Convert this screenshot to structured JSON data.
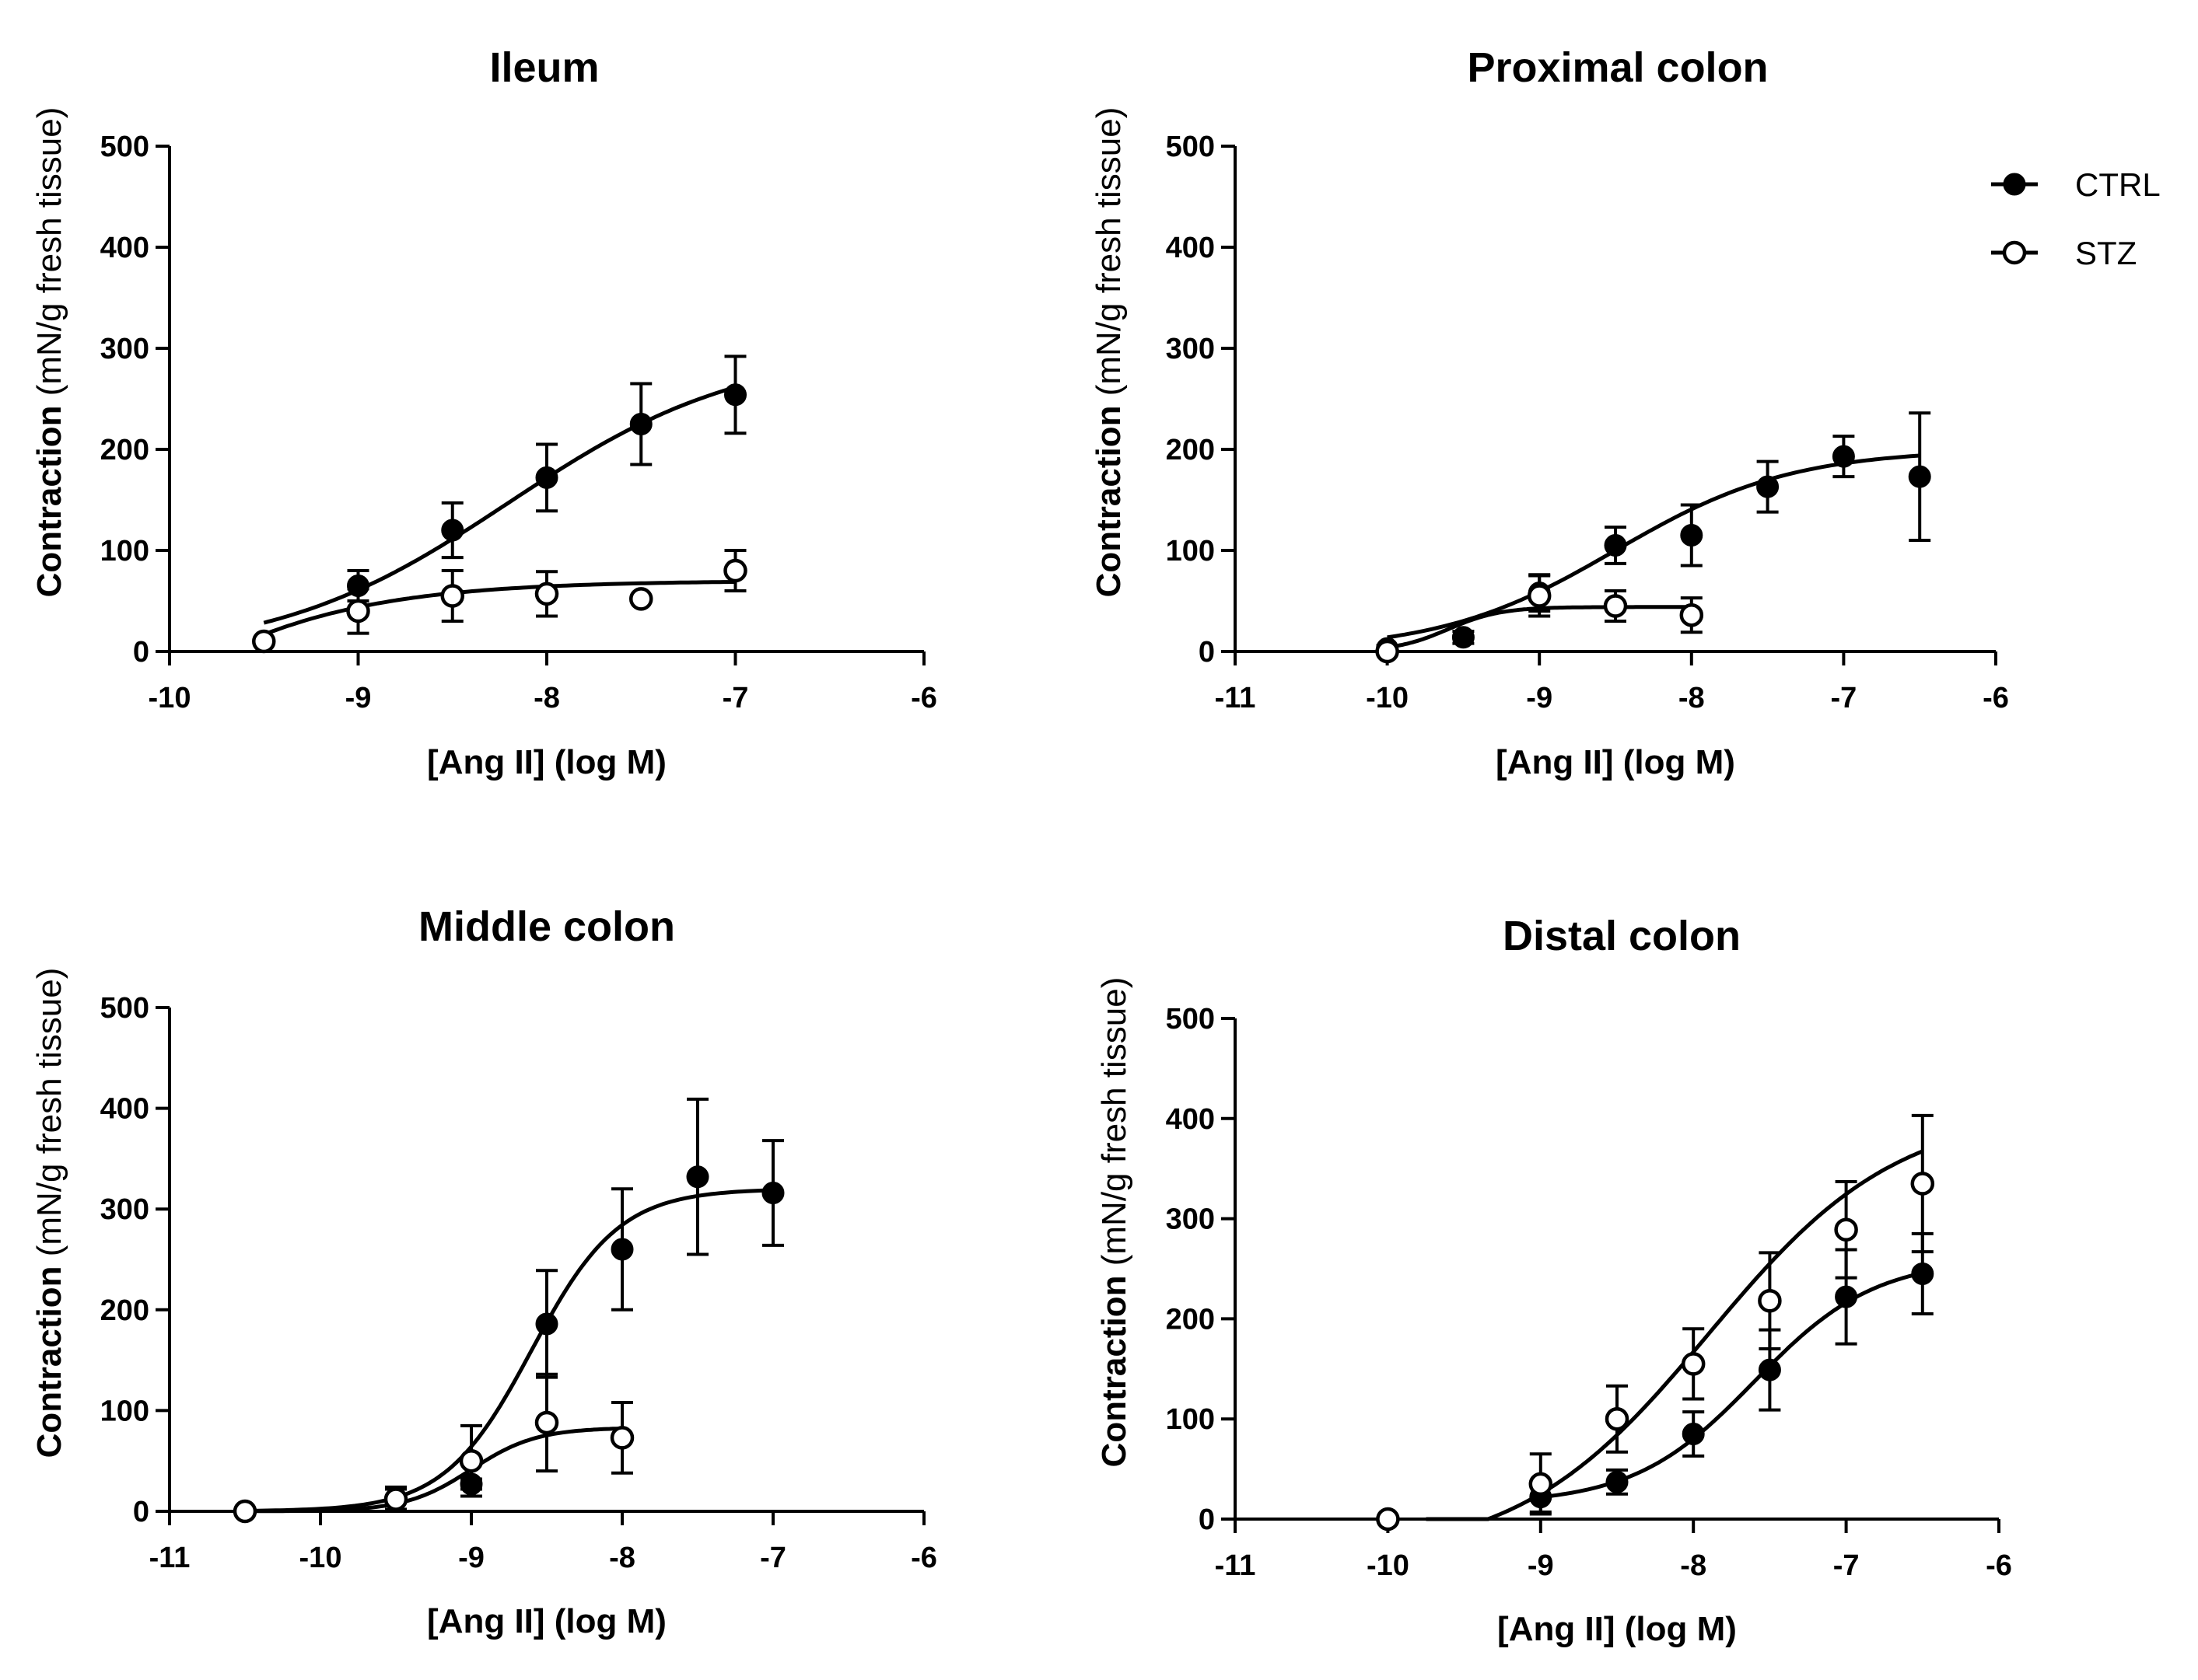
{
  "chart_data": [
    {
      "type": "scatter",
      "title": "Ileum",
      "xlabel": "[Ang II] (log M)",
      "ylabel_bold": "Contraction",
      "ylabel_rest": "(mN/g fresh tissue)",
      "xlim": [
        -10,
        -6
      ],
      "ylim": [
        0,
        500
      ],
      "xticks": [
        -10,
        -9,
        -8,
        -7,
        -6
      ],
      "yticks": [
        0,
        100,
        200,
        300,
        400,
        500
      ],
      "series": [
        {
          "name": "CTRL",
          "marker": "filled",
          "x": [
            -9.5,
            -9,
            -8.5,
            -8,
            -7.5,
            -7
          ],
          "y": [
            10,
            65,
            120,
            172,
            225,
            254
          ],
          "err": [
            3,
            15,
            27,
            33,
            40,
            38
          ],
          "curve": {
            "bottom": -5,
            "top": 300,
            "logec50": -8.2,
            "hill": 0.7,
            "from": -9.5,
            "to": -7
          }
        },
        {
          "name": "STZ",
          "marker": "open",
          "x": [
            -9.5,
            -9,
            -8.5,
            -8,
            -7.5,
            -7
          ],
          "y": [
            10,
            40,
            55,
            57,
            52,
            80
          ],
          "err": [
            3,
            22,
            25,
            22,
            0,
            20
          ],
          "curve": {
            "bottom": -250,
            "top": 70,
            "logec50": -10.5,
            "hill": 0.7,
            "from": -9.5,
            "to": -7
          }
        }
      ]
    },
    {
      "type": "scatter",
      "title": "Proximal colon",
      "xlabel": "[Ang II] (log M)",
      "ylabel_bold": "Contraction",
      "ylabel_rest": "(mN/g fresh tissue)",
      "xlim": [
        -11,
        -6
      ],
      "ylim": [
        0,
        500
      ],
      "xticks": [
        -11,
        -10,
        -9,
        -8,
        -7,
        -6
      ],
      "yticks": [
        0,
        100,
        200,
        300,
        400,
        500
      ],
      "series": [
        {
          "name": "CTRL",
          "marker": "filled",
          "x": [
            -10,
            -9.5,
            -9,
            -8.5,
            -8,
            -7.5,
            -7,
            -6.5
          ],
          "y": [
            3,
            14,
            58,
            105,
            115,
            163,
            193,
            173
          ],
          "err": [
            3,
            6,
            18,
            18,
            30,
            25,
            20,
            63
          ],
          "curve": {
            "bottom": 0,
            "top": 200,
            "logec50": -8.5,
            "hill": 0.75,
            "from": -10,
            "to": -6.5
          }
        },
        {
          "name": "STZ",
          "marker": "open",
          "x": [
            -10,
            -9,
            -8.5,
            -8
          ],
          "y": [
            0,
            55,
            45,
            36
          ],
          "err": [
            0,
            20,
            15,
            17
          ],
          "curve": {
            "bottom": 0,
            "top": 44,
            "logec50": -9.6,
            "hill": 2.5,
            "from": -10,
            "to": -8
          }
        }
      ]
    },
    {
      "type": "scatter",
      "title": "Middle colon",
      "xlabel": "[Ang II] (log M)",
      "ylabel_bold": "Contraction",
      "ylabel_rest": "(mN/g fresh tissue)",
      "xlim": [
        -11,
        -6
      ],
      "ylim": [
        0,
        500
      ],
      "xticks": [
        -11,
        -10,
        -9,
        -8,
        -7,
        -6
      ],
      "yticks": [
        0,
        100,
        200,
        300,
        400,
        500
      ],
      "series": [
        {
          "name": "CTRL",
          "marker": "filled",
          "x": [
            -9.5,
            -9,
            -8.5,
            -8,
            -7.5,
            -7
          ],
          "y": [
            12,
            27,
            186,
            260,
            332,
            316
          ],
          "err": [
            12,
            5,
            53,
            60,
            77,
            52
          ],
          "curve": {
            "bottom": 0,
            "top": 320,
            "logec50": -8.6,
            "hill": 1.5,
            "from": -10.5,
            "to": -7
          }
        },
        {
          "name": "STZ",
          "marker": "open",
          "x": [
            -10.5,
            -9.5,
            -9,
            -8.5,
            -8
          ],
          "y": [
            0,
            12,
            50,
            88,
            73
          ],
          "err": [
            0,
            10,
            35,
            48,
            35
          ],
          "curve": {
            "bottom": 0,
            "top": 83,
            "logec50": -9.0,
            "hill": 2.0,
            "from": -10.5,
            "to": -8
          }
        }
      ]
    },
    {
      "type": "scatter",
      "title": "Distal colon",
      "xlabel": "[Ang II] (log M)",
      "ylabel_bold": "Contraction",
      "ylabel_rest": "(mN/g fresh tissue)",
      "xlim": [
        -11,
        -6
      ],
      "ylim": [
        0,
        500
      ],
      "xticks": [
        -11,
        -10,
        -9,
        -8,
        -7,
        -6
      ],
      "yticks": [
        0,
        100,
        200,
        300,
        400,
        500
      ],
      "series": [
        {
          "name": "CTRL",
          "marker": "filled",
          "x": [
            -9,
            -8.5,
            -8,
            -7.5,
            -7,
            -6.5
          ],
          "y": [
            22,
            37,
            85,
            149,
            222,
            245
          ],
          "err": [
            15,
            12,
            22,
            40,
            47,
            40
          ],
          "curve": {
            "bottom": 15,
            "top": 260,
            "logec50": -7.6,
            "hill": 1.1,
            "from": -9,
            "to": -6.5
          }
        },
        {
          "name": "STZ",
          "marker": "open",
          "x": [
            -10,
            -9,
            -8.5,
            -8,
            -7.5,
            -7,
            -6.5
          ],
          "y": [
            0,
            35,
            100,
            155,
            218,
            289,
            335
          ],
          "err": [
            0,
            30,
            33,
            35,
            48,
            48,
            68
          ],
          "curve": {
            "bottom": -40,
            "top": 410,
            "logec50": -7.9,
            "hill": 0.7,
            "from": -9.75,
            "to": -6.5
          }
        }
      ]
    }
  ],
  "legend": {
    "items": [
      {
        "name": "CTRL",
        "marker": "filled"
      },
      {
        "name": "STZ",
        "marker": "open"
      }
    ]
  }
}
